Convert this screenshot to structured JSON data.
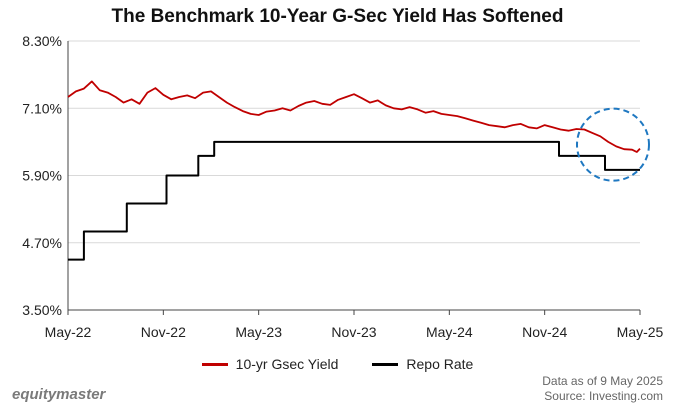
{
  "chart_data": {
    "type": "line",
    "title": "The Benchmark 10-Year G-Sec Yield Has Softened",
    "xlabel": "",
    "ylabel": "",
    "ylim": [
      3.5,
      8.3
    ],
    "y_ticks": [
      "3.50%",
      "4.70%",
      "5.90%",
      "7.10%",
      "8.30%"
    ],
    "y_tick_values": [
      3.5,
      4.7,
      5.9,
      7.1,
      8.3
    ],
    "x_ticks": [
      "May-22",
      "Nov-22",
      "May-23",
      "Nov-23",
      "May-24",
      "Nov-24",
      "May-25"
    ],
    "x_tick_values": [
      0,
      6,
      12,
      18,
      24,
      30,
      36
    ],
    "grid": true,
    "legend_position": "bottom",
    "series": [
      {
        "name": "10-yr Gsec Yield",
        "color": "#c00000",
        "x": [
          0,
          0.5,
          1,
          1.5,
          2,
          2.5,
          3,
          3.5,
          4,
          4.5,
          5,
          5.5,
          6,
          6.5,
          7,
          7.5,
          8,
          8.5,
          9,
          9.5,
          10,
          10.5,
          11,
          11.5,
          12,
          12.5,
          13,
          13.5,
          14,
          14.5,
          15,
          15.5,
          16,
          16.5,
          17,
          17.5,
          18,
          18.5,
          19,
          19.5,
          20,
          20.5,
          21,
          21.5,
          22,
          22.5,
          23,
          23.5,
          24,
          24.5,
          25,
          25.5,
          26,
          26.5,
          27,
          27.5,
          28,
          28.5,
          29,
          29.5,
          30,
          30.5,
          31,
          31.5,
          32,
          32.5,
          33,
          33.5,
          34,
          34.5,
          35,
          35.5,
          35.8,
          36
        ],
        "values": [
          7.3,
          7.4,
          7.45,
          7.58,
          7.42,
          7.38,
          7.3,
          7.2,
          7.26,
          7.18,
          7.38,
          7.46,
          7.34,
          7.26,
          7.3,
          7.33,
          7.28,
          7.38,
          7.4,
          7.3,
          7.2,
          7.12,
          7.05,
          7.0,
          6.98,
          7.04,
          7.06,
          7.1,
          7.06,
          7.14,
          7.2,
          7.23,
          7.18,
          7.16,
          7.25,
          7.3,
          7.35,
          7.28,
          7.2,
          7.24,
          7.15,
          7.1,
          7.08,
          7.12,
          7.08,
          7.02,
          7.05,
          7.0,
          6.98,
          6.96,
          6.92,
          6.88,
          6.84,
          6.8,
          6.78,
          6.76,
          6.8,
          6.82,
          6.76,
          6.74,
          6.8,
          6.76,
          6.72,
          6.7,
          6.73,
          6.72,
          6.66,
          6.6,
          6.5,
          6.42,
          6.37,
          6.36,
          6.32,
          6.38
        ]
      },
      {
        "name": "Repo Rate",
        "color": "#000000",
        "step": true,
        "x": [
          0,
          1,
          1,
          3.7,
          3.7,
          6.2,
          6.2,
          8.2,
          8.2,
          9.2,
          9.2,
          30.9,
          30.9,
          33.8,
          33.8,
          36
        ],
        "values": [
          4.4,
          4.4,
          4.9,
          4.9,
          5.4,
          5.4,
          5.9,
          5.9,
          6.25,
          6.25,
          6.5,
          6.5,
          6.25,
          6.25,
          6.0,
          6.0
        ]
      }
    ],
    "annotations": [
      {
        "type": "dashed-circle",
        "color": "#1f78c1",
        "near": "May-25 end of both series"
      }
    ]
  },
  "legend": {
    "yield_label": "10-yr Gsec Yield",
    "repo_label": "Repo Rate"
  },
  "footer": {
    "brand": "equitymaster",
    "data_note": "Data as of 9 May 2025",
    "source": "Source: Investing.com"
  }
}
